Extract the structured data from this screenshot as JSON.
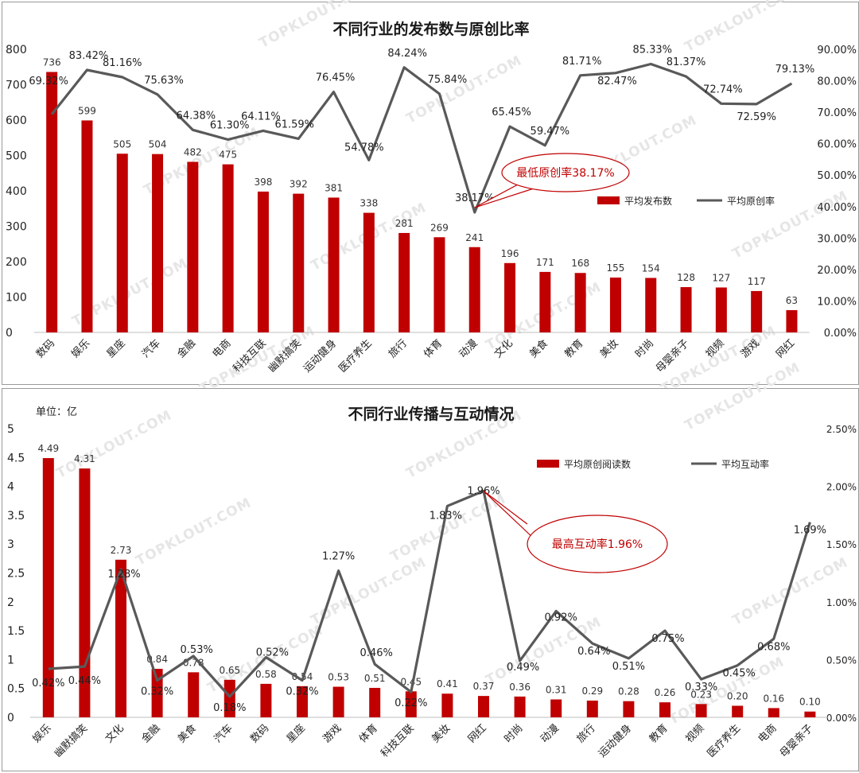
{
  "watermark": "TOPKLOUT.COM",
  "colors": {
    "bar": "#c00000",
    "line": "#595959",
    "callout_border": "#c00000",
    "callout_text": "#c00000"
  },
  "chart_data": [
    {
      "type": "bar",
      "title": "不同行业的发布数与原创比率",
      "unit_label": "",
      "categories": [
        "数码",
        "娱乐",
        "星座",
        "汽车",
        "金融",
        "电商",
        "科技互联",
        "幽默搞笑",
        "运动健身",
        "医疗养生",
        "旅行",
        "体育",
        "动漫",
        "文化",
        "美食",
        "教育",
        "美妆",
        "时尚",
        "母婴亲子",
        "视频",
        "游戏",
        "网红"
      ],
      "series": [
        {
          "name": "平均发布数",
          "kind": "bar",
          "axis": "left",
          "values": [
            736,
            599,
            505,
            504,
            482,
            475,
            398,
            392,
            381,
            338,
            281,
            269,
            241,
            196,
            171,
            168,
            155,
            154,
            128,
            127,
            117,
            63
          ],
          "labels": [
            "736",
            "599",
            "505",
            "504",
            "482",
            "475",
            "398",
            "392",
            "381",
            "338",
            "281",
            "269",
            "241",
            "196",
            "171",
            "168",
            "155",
            "154",
            "128",
            "127",
            "117",
            "63"
          ]
        },
        {
          "name": "平均原创率",
          "kind": "line",
          "axis": "right",
          "values": [
            69.32,
            83.42,
            81.16,
            75.63,
            64.38,
            61.3,
            64.11,
            61.59,
            76.45,
            54.78,
            84.24,
            75.84,
            38.17,
            65.45,
            59.47,
            81.71,
            82.47,
            85.33,
            81.37,
            72.74,
            72.59,
            79.13
          ],
          "labels": [
            "69.32%",
            "83.42%",
            "81.16%",
            "75.63%",
            "64.38%",
            "61.30%",
            "64.11%",
            "61.59%",
            "76.45%",
            "54.78%",
            "84.24%",
            "75.84%",
            "38.17%",
            "65.45%",
            "59.47%",
            "81.71%",
            "82.47%",
            "85.33%",
            "81.37%",
            "72.74%",
            "72.59%",
            "79.13%"
          ]
        }
      ],
      "y_left": {
        "min": 0,
        "max": 800,
        "step": 100,
        "ticks": [
          "0",
          "100",
          "200",
          "300",
          "400",
          "500",
          "600",
          "700",
          "800"
        ]
      },
      "y_right": {
        "min": 0,
        "max": 90,
        "step": 10,
        "ticks": [
          "0.00%",
          "10.00%",
          "20.00%",
          "30.00%",
          "40.00%",
          "50.00%",
          "60.00%",
          "70.00%",
          "80.00%",
          "90.00%"
        ]
      },
      "legend": {
        "placement": "right-middle",
        "bar_label": "平均发布数",
        "line_label": "平均原创率"
      },
      "callout": {
        "text": "最低原创率38.17%",
        "target_index": 12
      },
      "grid": false
    },
    {
      "type": "bar",
      "title": "不同行业传播与互动情况",
      "unit_label": "单位：亿",
      "categories": [
        "娱乐",
        "幽默搞笑",
        "文化",
        "金融",
        "美食",
        "汽车",
        "数码",
        "星座",
        "游戏",
        "体育",
        "科技互联",
        "美妆",
        "网红",
        "时尚",
        "动漫",
        "旅行",
        "运动健身",
        "教育",
        "视频",
        "医疗养生",
        "电商",
        "母婴亲子"
      ],
      "series": [
        {
          "name": "平均原创阅读数",
          "kind": "bar",
          "axis": "left",
          "values": [
            4.49,
            4.31,
            2.73,
            0.84,
            0.78,
            0.65,
            0.58,
            0.54,
            0.53,
            0.51,
            0.45,
            0.41,
            0.37,
            0.36,
            0.31,
            0.29,
            0.28,
            0.26,
            0.23,
            0.2,
            0.16,
            0.1
          ],
          "labels": [
            "4.49",
            "4.31",
            "2.73",
            "0.84",
            "0.78",
            "0.65",
            "0.58",
            "0.54",
            "0.53",
            "0.51",
            "0.45",
            "0.41",
            "0.37",
            "0.36",
            "0.31",
            "0.29",
            "0.28",
            "0.26",
            "0.23",
            "0.20",
            "0.16",
            "0.10"
          ]
        },
        {
          "name": "平均互动率",
          "kind": "line",
          "axis": "right",
          "values": [
            0.42,
            0.44,
            1.28,
            0.32,
            0.53,
            0.18,
            0.52,
            0.32,
            1.27,
            0.46,
            0.22,
            1.83,
            1.96,
            0.49,
            0.92,
            0.64,
            0.51,
            0.75,
            0.33,
            0.45,
            0.68,
            1.69
          ],
          "labels": [
            "0.42%",
            "0.44%",
            "1.28%",
            "0.32%",
            "0.53%",
            "0.18%",
            "0.52%",
            "0.32%",
            "1.27%",
            "0.46%",
            "0.22%",
            "1.83%",
            "1.96%",
            "0.49%",
            "0.92%",
            "0.64%",
            "0.51%",
            "0.75%",
            "0.33%",
            "0.45%",
            "0.68%",
            "1.69%"
          ]
        }
      ],
      "y_left": {
        "min": 0,
        "max": 5,
        "step": 0.5,
        "ticks": [
          "0",
          "0.5",
          "1",
          "1.5",
          "2",
          "2.5",
          "3",
          "3.5",
          "4",
          "4.5",
          "5"
        ]
      },
      "y_right": {
        "min": 0,
        "max": 2.5,
        "step": 0.5,
        "ticks": [
          "0.00%",
          "0.50%",
          "1.00%",
          "1.50%",
          "2.00%",
          "2.50%"
        ]
      },
      "legend": {
        "placement": "top-right",
        "bar_label": "平均原创阅读数",
        "line_label": "平均互动率"
      },
      "callout": {
        "text": "最高互动率1.96%",
        "target_index": 12
      },
      "grid": false
    }
  ]
}
